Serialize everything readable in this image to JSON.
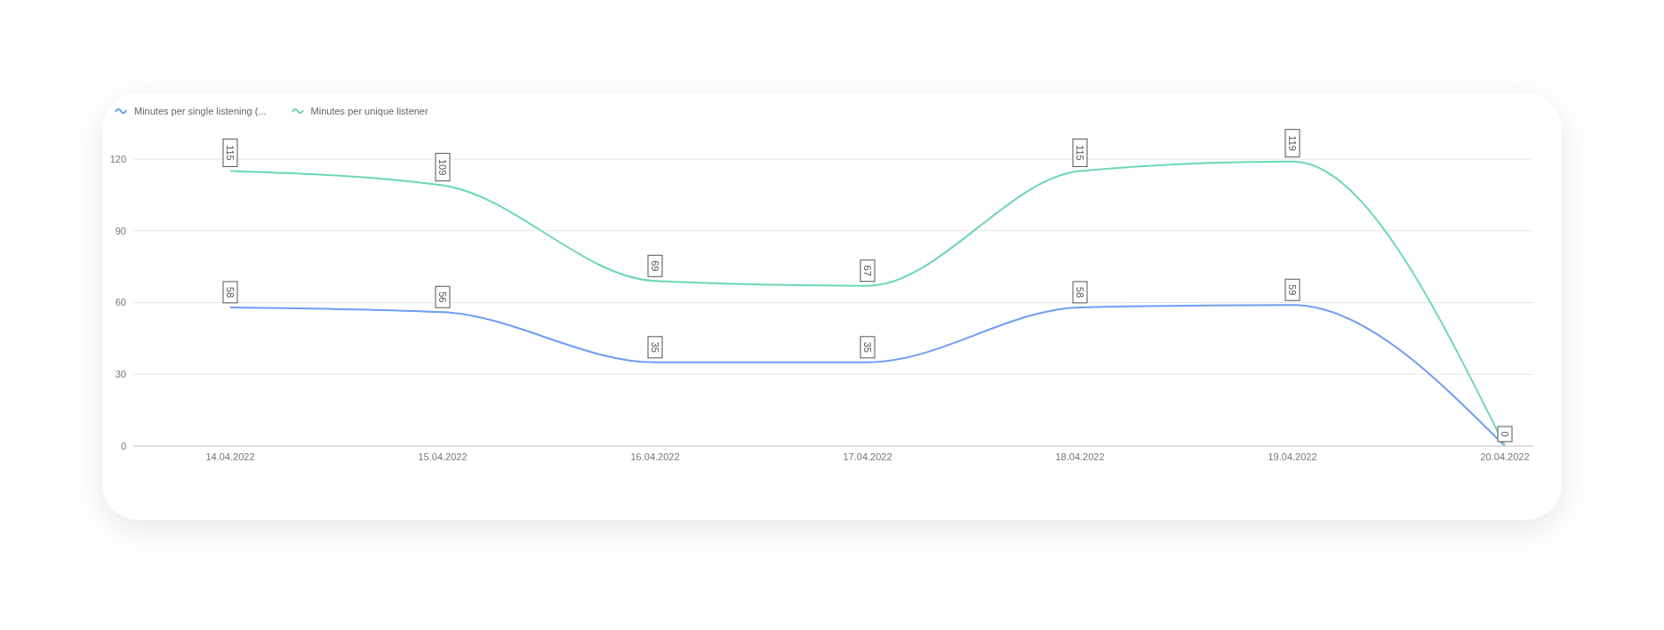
{
  "chart_data": {
    "type": "line",
    "categories": [
      "14.04.2022",
      "15.04.2022",
      "16.04.2022",
      "17.04.2022",
      "18.04.2022",
      "19.04.2022",
      "20.04.2022"
    ],
    "series": [
      {
        "name": "Minutes per single listening (...",
        "color": "#6f9cf6",
        "values": [
          58,
          56,
          35,
          35,
          58,
          59,
          0
        ],
        "value_labels": [
          "58",
          "56",
          "35",
          "35",
          "58",
          "59",
          null
        ]
      },
      {
        "name": "Minutes per unique listener",
        "color": "#6ed8b0",
        "values": [
          115,
          109,
          69,
          67,
          115,
          119,
          0
        ],
        "value_labels": [
          "115",
          "109",
          "69",
          "67",
          "115",
          "119",
          "0"
        ]
      }
    ],
    "ylim": [
      0,
      120
    ],
    "yticks": [
      0,
      30,
      60,
      90,
      120
    ],
    "grid": "y",
    "legend": "top left",
    "marker": "none",
    "line_style": "solid"
  }
}
